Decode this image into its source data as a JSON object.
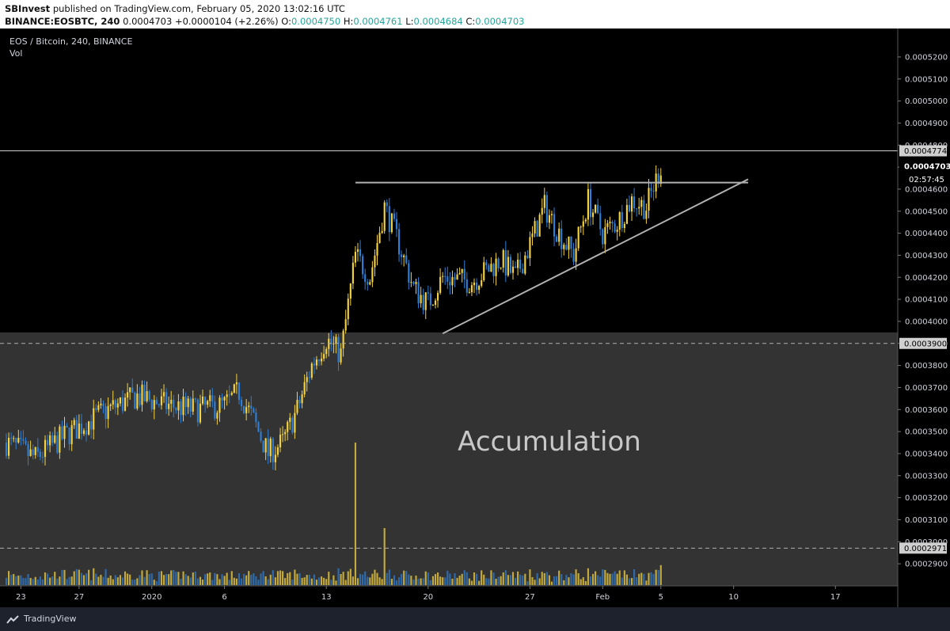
{
  "header": {
    "publisher": "SBInvest",
    "published_text": "published on TradingView.com, February 05, 2020 13:02:16 UTC",
    "symbol": "BINANCE:EOSBTC, 240",
    "last_price": "0.0004703",
    "change": "+0.0000104 (+2.26%)",
    "o_label": "O:",
    "o_value": "0.0004750",
    "h_label": "H:",
    "h_value": "0.0004761",
    "l_label": "L:",
    "l_value": "0.0004684",
    "c_label": "C:",
    "c_value": "0.0004703"
  },
  "chart_title": "EOS / Bitcoin, 240, BINANCE",
  "volume_label": "Vol",
  "annotation": "Accumulation",
  "price_tags": {
    "high_line": "0.0004774",
    "last": "0.0004703",
    "countdown": "02:57:45",
    "support": "0.0003900",
    "volume_line": "0.0002971"
  },
  "footer": {
    "brand": "TradingView"
  },
  "colors": {
    "up": "#f5d33f",
    "down": "#2f7fd6",
    "background": "#000000",
    "accumulation_zone": "#333333",
    "trendline": "#b2b2b2"
  },
  "chart_data": {
    "type": "candlestick",
    "y_axis": {
      "ticks": [
        "0.0005200",
        "0.0005100",
        "0.0005000",
        "0.0004900",
        "0.0004800",
        "0.0004700",
        "0.0004600",
        "0.0004500",
        "0.0004400",
        "0.0004300",
        "0.0004200",
        "0.0004100",
        "0.0004000",
        "0.0003900",
        "0.0003800",
        "0.0003700",
        "0.0003600",
        "0.0003500",
        "0.0003400",
        "0.0003300",
        "0.0003200",
        "0.0003100",
        "0.0003000",
        "0.0002900"
      ],
      "range": [
        0.000285,
        0.000525
      ]
    },
    "x_axis": {
      "ticks": [
        "23",
        "27",
        "2020",
        "6",
        "13",
        "20",
        "27",
        "Feb",
        "5",
        "10",
        "17"
      ],
      "range": [
        "2019-12-22",
        "2020-02-19"
      ]
    },
    "key_points": [
      {
        "date": "2019-12-22",
        "close": 0.000345
      },
      {
        "date": "2019-12-24",
        "close": 0.000338
      },
      {
        "date": "2019-12-26",
        "close": 0.000348
      },
      {
        "date": "2019-12-29",
        "close": 0.00036
      },
      {
        "date": "2019-12-31",
        "close": 0.000366
      },
      {
        "date": "2020-01-02",
        "close": 0.000362
      },
      {
        "date": "2020-01-04",
        "close": 0.00036
      },
      {
        "date": "2020-01-06",
        "close": 0.000362
      },
      {
        "date": "2020-01-07",
        "close": 0.000368
      },
      {
        "date": "2020-01-08",
        "close": 0.000355
      },
      {
        "date": "2020-01-09",
        "close": 0.00034
      },
      {
        "date": "2020-01-10",
        "close": 0.000345
      },
      {
        "date": "2020-01-11",
        "close": 0.00036
      },
      {
        "date": "2020-01-12",
        "close": 0.00038
      },
      {
        "date": "2020-01-13",
        "close": 0.000392
      },
      {
        "date": "2020-01-14",
        "close": 0.000385
      },
      {
        "date": "2020-01-15",
        "close": 0.00043
      },
      {
        "date": "2020-01-16",
        "close": 0.00042
      },
      {
        "date": "2020-01-17",
        "close": 0.000452
      },
      {
        "date": "2020-01-18",
        "close": 0.000435
      },
      {
        "date": "2020-01-19",
        "close": 0.000415
      },
      {
        "date": "2020-01-20",
        "close": 0.000408
      },
      {
        "date": "2020-01-21",
        "close": 0.00042
      },
      {
        "date": "2020-01-23",
        "close": 0.000418
      },
      {
        "date": "2020-01-25",
        "close": 0.000428
      },
      {
        "date": "2020-01-26",
        "close": 0.00042
      },
      {
        "date": "2020-01-27",
        "close": 0.000435
      },
      {
        "date": "2020-01-28",
        "close": 0.000452
      },
      {
        "date": "2020-01-29",
        "close": 0.00044
      },
      {
        "date": "2020-01-30",
        "close": 0.00043
      },
      {
        "date": "2020-01-31",
        "close": 0.000455
      },
      {
        "date": "2020-02-01",
        "close": 0.00044
      },
      {
        "date": "2020-02-02",
        "close": 0.000445
      },
      {
        "date": "2020-02-03",
        "close": 0.000455
      },
      {
        "date": "2020-02-04",
        "close": 0.000452
      },
      {
        "date": "2020-02-05",
        "close": 0.0004703
      }
    ],
    "resistance": {
      "value": 0.000463,
      "from": "2020-01-15",
      "to": "2020-02-11"
    },
    "trendline": {
      "from": {
        "date": "2020-01-21",
        "value": 0.0003945
      },
      "to": {
        "date": "2020-02-11",
        "value": 0.0004645
      }
    },
    "support": 0.00039,
    "high_line": 0.0004774,
    "volume": {
      "reference": 0.0002971,
      "spikes": [
        {
          "date": "2020-01-15",
          "rel": 1.0
        },
        {
          "date": "2020-01-17",
          "rel": 0.4
        },
        {
          "date": "2020-02-05",
          "rel": 0.14
        }
      ]
    },
    "accumulation_zone": {
      "top": 0.000395,
      "bottom": 0.000285
    }
  }
}
